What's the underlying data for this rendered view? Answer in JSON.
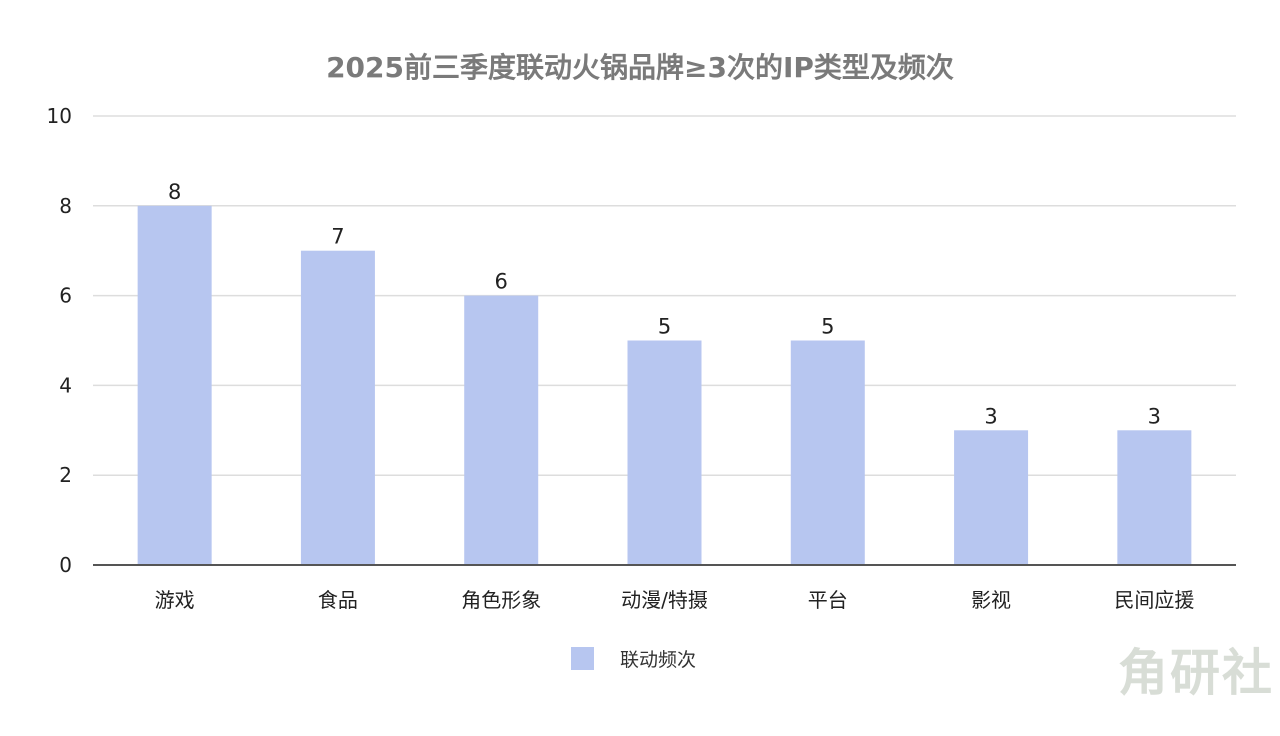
{
  "logo": {
    "text": "角研社"
  },
  "chart_data": {
    "type": "bar",
    "title": "2025前三季度联动火锅品牌≥3次的IP类型及频次",
    "categories": [
      "游戏",
      "食品",
      "角色形象",
      "动漫/特摄",
      "平台",
      "影视",
      "民间应援"
    ],
    "series": [
      {
        "name": "联动频次",
        "values": [
          8,
          7,
          6,
          5,
          5,
          3,
          3
        ],
        "color": "#b7c6f0"
      }
    ],
    "yticks": [
      0,
      2,
      4,
      6,
      8,
      10
    ],
    "ylim": [
      0,
      10
    ],
    "xlabel": "",
    "ylabel": "",
    "grid": true,
    "legend": "bottom-center",
    "colors": {
      "bar": "#b7c6f0",
      "grid": "#dddddd",
      "axis": "#555555"
    }
  }
}
